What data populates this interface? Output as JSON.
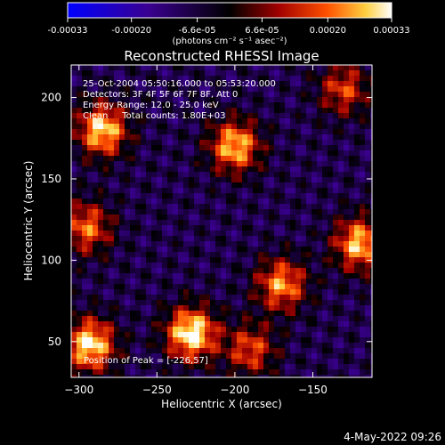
{
  "chart_data": {
    "type": "heatmap",
    "title": "Reconstructed RHESSI Image",
    "xlabel": "Heliocentric X (arcsec)",
    "ylabel": "Heliocentric Y (arcsec)",
    "xlim": [
      -305,
      -112
    ],
    "ylim": [
      28,
      220
    ],
    "x_ticks": [
      -300,
      -250,
      -200,
      -150
    ],
    "y_ticks": [
      50,
      100,
      150,
      200
    ],
    "colorbar": {
      "range": [
        -0.00033,
        0.00033
      ],
      "tick_values": [
        -0.00033,
        -0.0002,
        -6.6e-05,
        6.6e-05,
        0.0002,
        0.00033
      ],
      "tick_labels": [
        "-0.00033",
        "-0.00020",
        "-6.6e-05",
        "6.6e-05",
        "0.00020",
        "0.00033"
      ],
      "units": "(photons cm⁻² s⁻¹ asec⁻²)"
    },
    "annotations": [
      "25-Oct-2004 05:50:16.000 to 05:53:20.000",
      "Detectors: 3F 4F 5F 6F 7F 8F, Att 0",
      "Energy Range: 12.0 - 25.0 keV",
      "Clean     Total counts: 1.80E+03"
    ],
    "peak_label": "Position of Peak = [-226,57]",
    "peak": [
      -226,
      57
    ],
    "bright_regions": [
      {
        "x": -228,
        "y": 55,
        "value": 0.00033
      },
      {
        "x": -293,
        "y": 48,
        "value": 0.0003
      },
      {
        "x": -285,
        "y": 180,
        "value": 0.00028
      },
      {
        "x": -200,
        "y": 170,
        "value": 0.00026
      },
      {
        "x": -120,
        "y": 110,
        "value": 0.00026
      },
      {
        "x": -170,
        "y": 85,
        "value": 0.00022
      },
      {
        "x": -295,
        "y": 120,
        "value": 0.00018
      },
      {
        "x": -190,
        "y": 45,
        "value": 0.00015
      },
      {
        "x": -130,
        "y": 205,
        "value": 0.00014
      }
    ]
  },
  "footer": {
    "timestamp": "4-May-2022 09:26"
  }
}
